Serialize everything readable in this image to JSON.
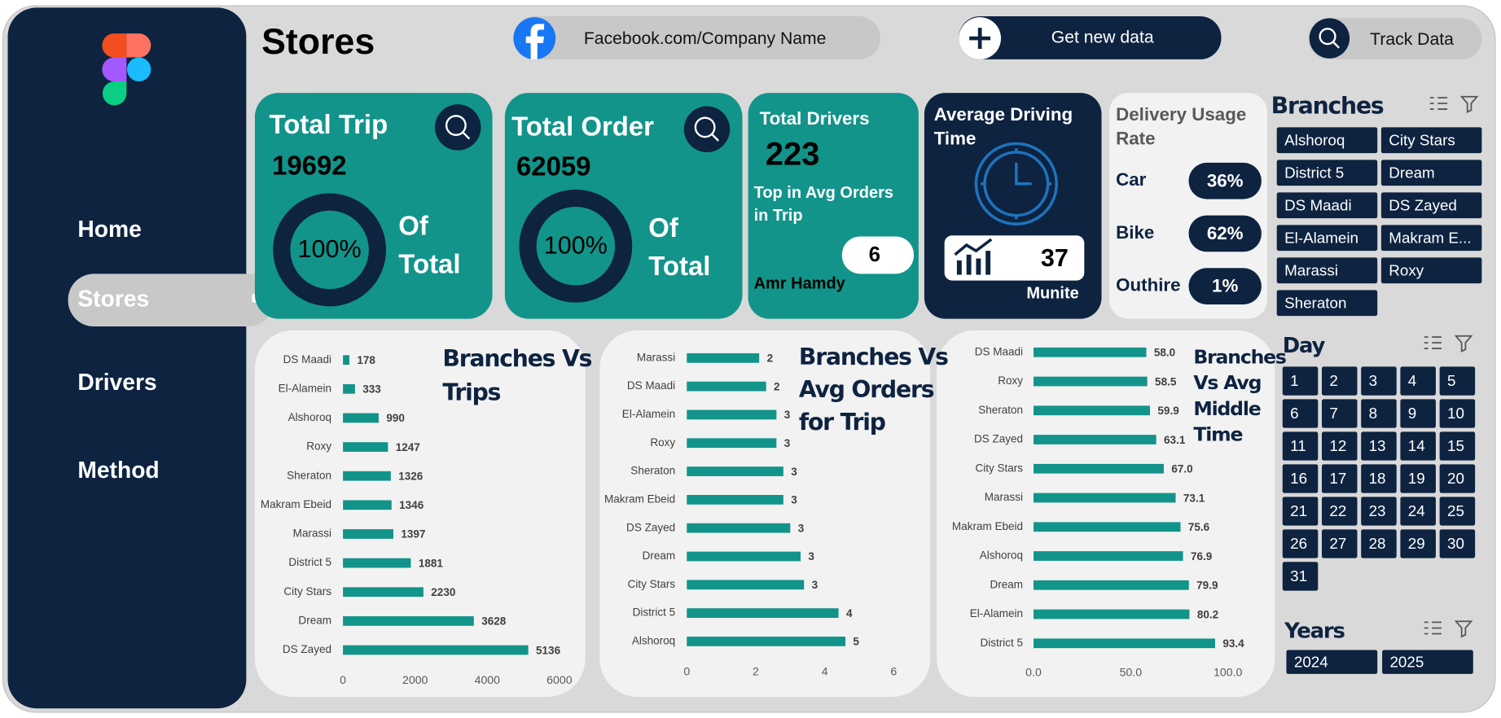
{
  "sidebar": {
    "nav": [
      "Home",
      "Stores",
      "Drivers",
      "Method"
    ]
  },
  "header": {
    "title": "Stores",
    "facebook": "Facebook.com/Company Name",
    "get_data": "Get new data",
    "track": "Track Data"
  },
  "kpis": {
    "total_trip": {
      "label": "Total Trip",
      "value": 19692,
      "percent": "100%",
      "of": "Of",
      "total": "Total"
    },
    "total_order": {
      "label": "Total Order",
      "value": 62059,
      "percent": "100%",
      "of": "Of",
      "total": "Total"
    },
    "drivers": {
      "label": "Total Drivers",
      "value": 223,
      "top_label": [
        "Top in Avg Orders",
        "in Trip"
      ],
      "top_value": 6,
      "top_name": "Amr Hamdy"
    },
    "avg_time": {
      "label": [
        "Average Driving",
        "Time"
      ],
      "value": 37,
      "unit": "Munite"
    },
    "usage": {
      "label": [
        "Delivery Usage",
        "Rate"
      ],
      "rows": [
        {
          "name": "Car",
          "value": "36%"
        },
        {
          "name": "Bike",
          "value": "62%"
        },
        {
          "name": "Outhire",
          "value": "1%"
        }
      ]
    }
  },
  "slicers": {
    "branches": {
      "title": "Branches",
      "items": [
        "Alshoroq",
        "City Stars",
        "District 5",
        "Dream",
        "DS Maadi",
        "DS Zayed",
        "El-Alamein",
        "Makram E...",
        "Marassi",
        "Roxy",
        "Sheraton"
      ]
    },
    "day": {
      "title": "Day",
      "items": [
        1,
        2,
        3,
        4,
        5,
        6,
        7,
        8,
        9,
        10,
        11,
        12,
        13,
        14,
        15,
        16,
        17,
        18,
        19,
        20,
        21,
        22,
        23,
        24,
        25,
        26,
        27,
        28,
        29,
        30,
        31
      ]
    },
    "years": {
      "title": "Years",
      "items": [
        2024,
        2025
      ]
    }
  },
  "chart_data": [
    {
      "type": "bar",
      "orientation": "horizontal",
      "title": [
        "Branches Vs",
        "Trips"
      ],
      "color": "#12948a",
      "categories": [
        "DS Maadi",
        "El-Alamein",
        "Alshoroq",
        "Roxy",
        "Sheraton",
        "Makram Ebeid",
        "Marassi",
        "District 5",
        "City Stars",
        "Dream",
        "DS Zayed"
      ],
      "values": [
        178,
        333,
        990,
        1247,
        1326,
        1346,
        1397,
        1881,
        2230,
        3628,
        5136
      ],
      "xlim": [
        0,
        6000
      ],
      "xticks": [
        0,
        2000,
        4000,
        6000
      ]
    },
    {
      "type": "bar",
      "orientation": "horizontal",
      "title": [
        "Branches Vs",
        "Avg Orders",
        "for Trip"
      ],
      "color": "#12948a",
      "categories": [
        "Marassi",
        "DS Maadi",
        "El-Alamein",
        "Roxy",
        "Sheraton",
        "Makram Ebeid",
        "DS Zayed",
        "Dream",
        "City Stars",
        "District 5",
        "Alshoroq"
      ],
      "values": [
        2.1,
        2.3,
        2.6,
        2.6,
        2.8,
        2.8,
        3.0,
        3.3,
        3.4,
        4.4,
        4.6
      ],
      "value_labels": [
        "2",
        "2",
        "3",
        "3",
        "3",
        "3",
        "3",
        "3",
        "3",
        "4",
        "5"
      ],
      "xlim": [
        0,
        6
      ],
      "xticks": [
        0,
        2,
        4,
        6
      ]
    },
    {
      "type": "bar",
      "orientation": "horizontal",
      "title": [
        "Branches",
        "Vs Avg",
        "Middle",
        "Time"
      ],
      "color": "#12948a",
      "categories": [
        "DS Maadi",
        "Roxy",
        "Sheraton",
        "DS Zayed",
        "City Stars",
        "Marassi",
        "Makram Ebeid",
        "Alshoroq",
        "Dream",
        "El-Alamein",
        "District 5"
      ],
      "values": [
        58.0,
        58.5,
        59.9,
        63.1,
        67.0,
        73.1,
        75.6,
        76.9,
        79.9,
        80.2,
        93.4
      ],
      "value_labels": [
        "58.0",
        "58.5",
        "59.9",
        "63.1",
        "67.0",
        "73.1",
        "75.6",
        "76.9",
        "79.9",
        "80.2",
        "93.4"
      ],
      "xlim": [
        0,
        100
      ],
      "xticks": [
        {
          "value": 0,
          "label": "0.0"
        },
        {
          "value": 50,
          "label": "50.0"
        },
        {
          "value": 100,
          "label": "100.0"
        }
      ]
    }
  ]
}
